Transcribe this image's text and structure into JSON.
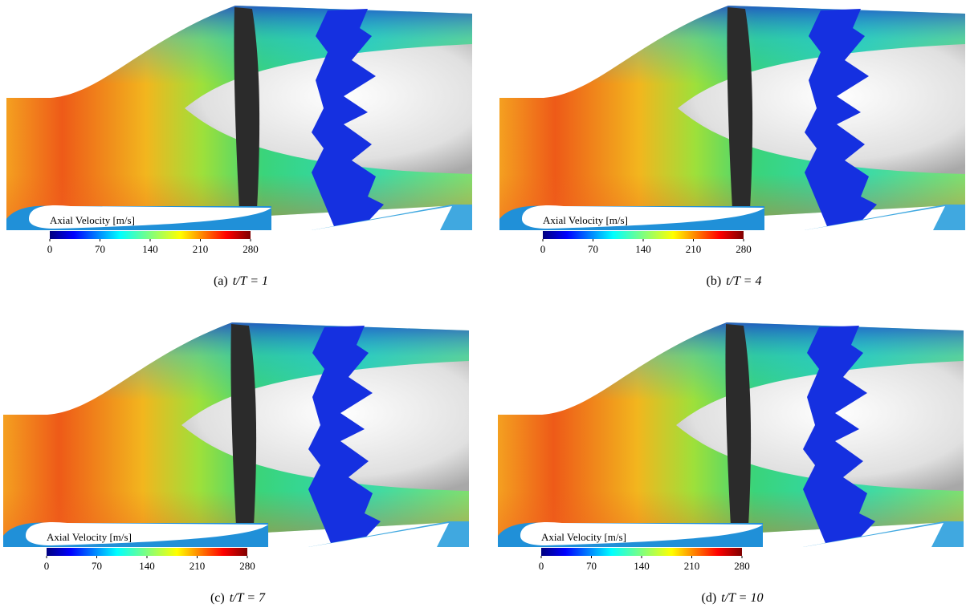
{
  "panels": [
    {
      "colorbar": {
        "label": "Axial Velocity [m/s]",
        "ticks": [
          0,
          70,
          140,
          210,
          280
        ]
      },
      "caption_tag": "(a)",
      "caption": "t/T = 1"
    },
    {
      "colorbar": {
        "label": "Axial Velocity [m/s]",
        "ticks": [
          0,
          70,
          140,
          210,
          280
        ]
      },
      "caption_tag": "(b)",
      "caption": "t/T = 4"
    },
    {
      "colorbar": {
        "label": "Axial Velocity [m/s]",
        "ticks": [
          0,
          70,
          140,
          210,
          280
        ]
      },
      "caption_tag": "(c)",
      "caption": "t/T = 7"
    },
    {
      "colorbar": {
        "label": "Axial Velocity [m/s]",
        "ticks": [
          0,
          70,
          140,
          210,
          280
        ]
      },
      "caption_tag": "(d)",
      "caption": "t/T = 10"
    }
  ]
}
